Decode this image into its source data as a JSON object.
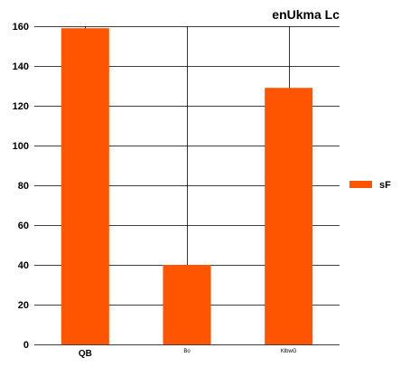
{
  "chart_data": {
    "type": "bar",
    "title": "enUkma Lc",
    "categories": [
      "QB",
      "Bo",
      "KlbwG"
    ],
    "series": [
      {
        "name": "sF",
        "values": [
          159,
          40,
          129
        ],
        "color": "#ff5500"
      }
    ],
    "ylim": [
      0,
      160
    ],
    "yticks": [
      0,
      20,
      40,
      60,
      80,
      100,
      120,
      140,
      160
    ],
    "grid": true,
    "legend_position": "right"
  }
}
